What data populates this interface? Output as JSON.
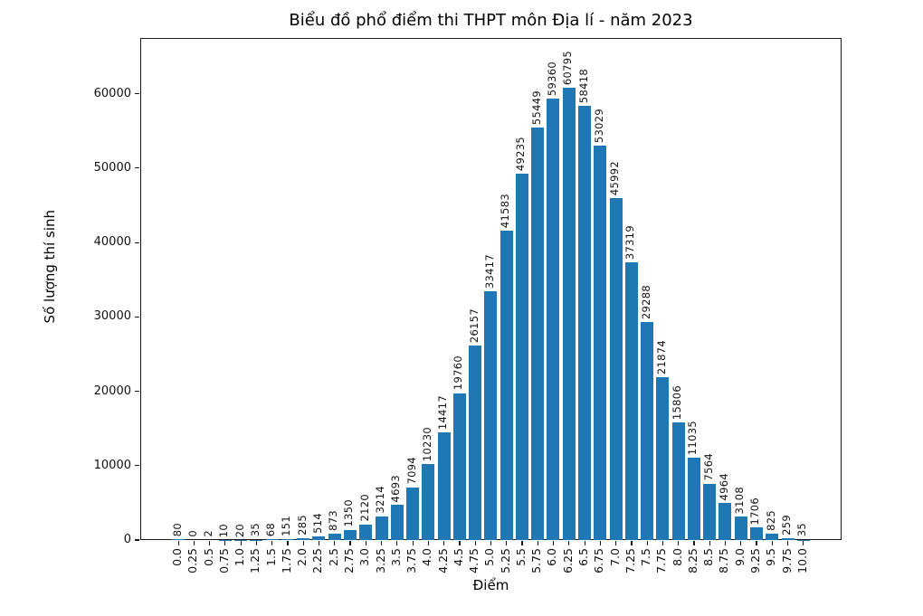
{
  "chart_data": {
    "type": "bar",
    "title": "Biểu đồ phổ điểm thi THPT môn Địa lí - năm 2023",
    "xlabel": "Điểm",
    "ylabel": "Số lượng thí sinh",
    "categories": [
      "0.0",
      "0.25",
      "0.5",
      "0.75",
      "1.0",
      "1.25",
      "1.5",
      "1.75",
      "2.0",
      "2.25",
      "2.5",
      "2.75",
      "3.0",
      "3.25",
      "3.5",
      "3.75",
      "4.0",
      "4.25",
      "4.5",
      "4.75",
      "5.0",
      "5.25",
      "5.5",
      "5.75",
      "6.0",
      "6.25",
      "6.5",
      "6.75",
      "7.0",
      "7.25",
      "7.5",
      "7.75",
      "8.0",
      "8.25",
      "8.5",
      "8.75",
      "9.0",
      "9.25",
      "9.5",
      "9.75",
      "10.0"
    ],
    "values": [
      80,
      0,
      2,
      10,
      20,
      35,
      68,
      151,
      285,
      514,
      873,
      1350,
      2120,
      3214,
      4693,
      7094,
      10230,
      14417,
      19760,
      26157,
      33417,
      41583,
      49235,
      55449,
      59360,
      60795,
      58418,
      53029,
      45992,
      37319,
      29288,
      21874,
      15806,
      11035,
      7564,
      4964,
      3108,
      1706,
      825,
      259,
      35
    ],
    "bar_labels_visible": true,
    "yticks": [
      0,
      10000,
      20000,
      30000,
      40000,
      50000,
      60000
    ],
    "ylim": [
      0,
      67500
    ],
    "bar_color": "#1f77b4",
    "grid": "off",
    "legend": "none",
    "tick_label_rotation": "vertical"
  }
}
